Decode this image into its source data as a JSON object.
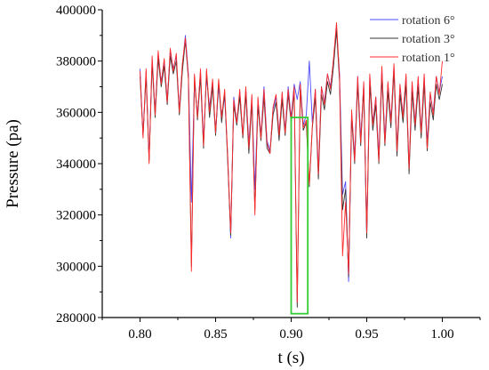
{
  "chart_data": {
    "type": "line",
    "title": "",
    "xlabel": "t (s)",
    "ylabel": "Pressure (pa)",
    "xlim": [
      0.775,
      1.025
    ],
    "ylim": [
      280000,
      400000
    ],
    "x_ticks": [
      0.8,
      0.85,
      0.9,
      0.95,
      1.0
    ],
    "x_tick_labels": [
      "0.80",
      "0.85",
      "0.90",
      "0.95",
      "1.00"
    ],
    "y_ticks": [
      280000,
      300000,
      320000,
      340000,
      360000,
      380000,
      400000
    ],
    "y_tick_labels": [
      "280000",
      "300000",
      "320000",
      "340000",
      "360000",
      "380000",
      "400000"
    ],
    "grid": false,
    "legend_position": "top-right",
    "highlight_box": {
      "x": [
        0.9,
        0.911
      ],
      "y": [
        281500,
        358000
      ],
      "color": "#33cc33"
    },
    "x": [
      0.8,
      0.802,
      0.804,
      0.806,
      0.808,
      0.81,
      0.812,
      0.814,
      0.816,
      0.818,
      0.82,
      0.822,
      0.824,
      0.826,
      0.828,
      0.83,
      0.832,
      0.834,
      0.836,
      0.838,
      0.84,
      0.842,
      0.844,
      0.846,
      0.848,
      0.85,
      0.852,
      0.854,
      0.856,
      0.858,
      0.86,
      0.862,
      0.864,
      0.866,
      0.868,
      0.87,
      0.872,
      0.874,
      0.876,
      0.878,
      0.88,
      0.882,
      0.884,
      0.886,
      0.888,
      0.89,
      0.892,
      0.894,
      0.896,
      0.898,
      0.9,
      0.902,
      0.904,
      0.906,
      0.908,
      0.91,
      0.912,
      0.914,
      0.916,
      0.918,
      0.92,
      0.922,
      0.924,
      0.926,
      0.928,
      0.93,
      0.932,
      0.934,
      0.936,
      0.938,
      0.94,
      0.942,
      0.944,
      0.946,
      0.948,
      0.95,
      0.952,
      0.954,
      0.956,
      0.958,
      0.96,
      0.962,
      0.964,
      0.966,
      0.968,
      0.97,
      0.972,
      0.974,
      0.976,
      0.978,
      0.98,
      0.982,
      0.984,
      0.986,
      0.988,
      0.99,
      0.992,
      0.994,
      0.996,
      0.998,
      1.0
    ],
    "series": [
      {
        "name": "rotation 6°",
        "color": "#4a4aff",
        "values": [
          377000,
          351000,
          376000,
          342000,
          381000,
          360000,
          383000,
          372000,
          380000,
          365000,
          384000,
          377000,
          382000,
          361000,
          378000,
          390000,
          375000,
          325000,
          372000,
          359000,
          376000,
          349000,
          374000,
          362000,
          372000,
          352000,
          370000,
          359000,
          366000,
          343000,
          311000,
          366000,
          356000,
          368000,
          351000,
          369000,
          348000,
          366000,
          330000,
          365000,
          351000,
          370000,
          349000,
          345000,
          361000,
          366000,
          352000,
          367000,
          353000,
          370000,
          358000,
          371000,
          365000,
          372000,
          355000,
          359000,
          380000,
          356000,
          369000,
          337000,
          370000,
          364000,
          375000,
          370000,
          380000,
          393000,
          375000,
          328000,
          333000,
          294000,
          360000,
          343000,
          374000,
          350000,
          371000,
          312000,
          374000,
          356000,
          366000,
          343000,
          377000,
          350000,
          371000,
          357000,
          378000,
          346000,
          370000,
          359000,
          374000,
          338000,
          371000,
          356000,
          373000,
          353000,
          374000,
          348000,
          367000,
          360000,
          374000,
          368000,
          374000
        ]
      },
      {
        "name": "rotation 3°",
        "color": "#333333",
        "values": [
          374000,
          351000,
          374000,
          341000,
          379000,
          358000,
          381000,
          370000,
          378000,
          363000,
          382000,
          375000,
          380000,
          359000,
          376000,
          388000,
          373000,
          300000,
          374000,
          357000,
          374000,
          346000,
          376000,
          358000,
          370000,
          351000,
          372000,
          356000,
          368000,
          341000,
          312000,
          363000,
          355000,
          366000,
          350000,
          367000,
          344000,
          364000,
          322000,
          363000,
          349000,
          366000,
          346000,
          344000,
          359000,
          364000,
          349000,
          365000,
          351000,
          367000,
          356000,
          368000,
          284000,
          369000,
          353000,
          356000,
          331000,
          354000,
          366000,
          334000,
          367000,
          361000,
          372000,
          367000,
          378000,
          392000,
          372000,
          322000,
          330000,
          296000,
          358000,
          340000,
          371000,
          347000,
          369000,
          311000,
          371000,
          353000,
          363000,
          340000,
          374000,
          347000,
          368000,
          354000,
          376000,
          343000,
          367000,
          356000,
          371000,
          336000,
          368000,
          353000,
          370000,
          350000,
          371000,
          345000,
          364000,
          357000,
          371000,
          365000,
          371000
        ]
      },
      {
        "name": "rotation 1°",
        "color": "#ff2a2a",
        "values": [
          376000,
          350000,
          377000,
          340000,
          382000,
          359000,
          384000,
          371000,
          381000,
          364000,
          385000,
          376000,
          383000,
          360000,
          379000,
          389000,
          374000,
          298000,
          375000,
          358000,
          377000,
          347000,
          377000,
          360000,
          373000,
          352000,
          373000,
          358000,
          369000,
          343000,
          313000,
          365000,
          356000,
          369000,
          351000,
          370000,
          346000,
          367000,
          320000,
          366000,
          350000,
          369000,
          348000,
          344000,
          362000,
          367000,
          351000,
          368000,
          352000,
          369000,
          357000,
          370000,
          286000,
          371000,
          354000,
          357000,
          332000,
          355000,
          369000,
          336000,
          370000,
          363000,
          375000,
          369000,
          381000,
          395000,
          374000,
          304000,
          325000,
          297000,
          361000,
          341000,
          374000,
          348000,
          372000,
          313000,
          375000,
          355000,
          366000,
          341000,
          378000,
          348000,
          372000,
          356000,
          379000,
          345000,
          371000,
          358000,
          375000,
          338000,
          372000,
          355000,
          374000,
          352000,
          375000,
          346000,
          368000,
          359000,
          374000,
          367000,
          380000
        ]
      }
    ]
  }
}
